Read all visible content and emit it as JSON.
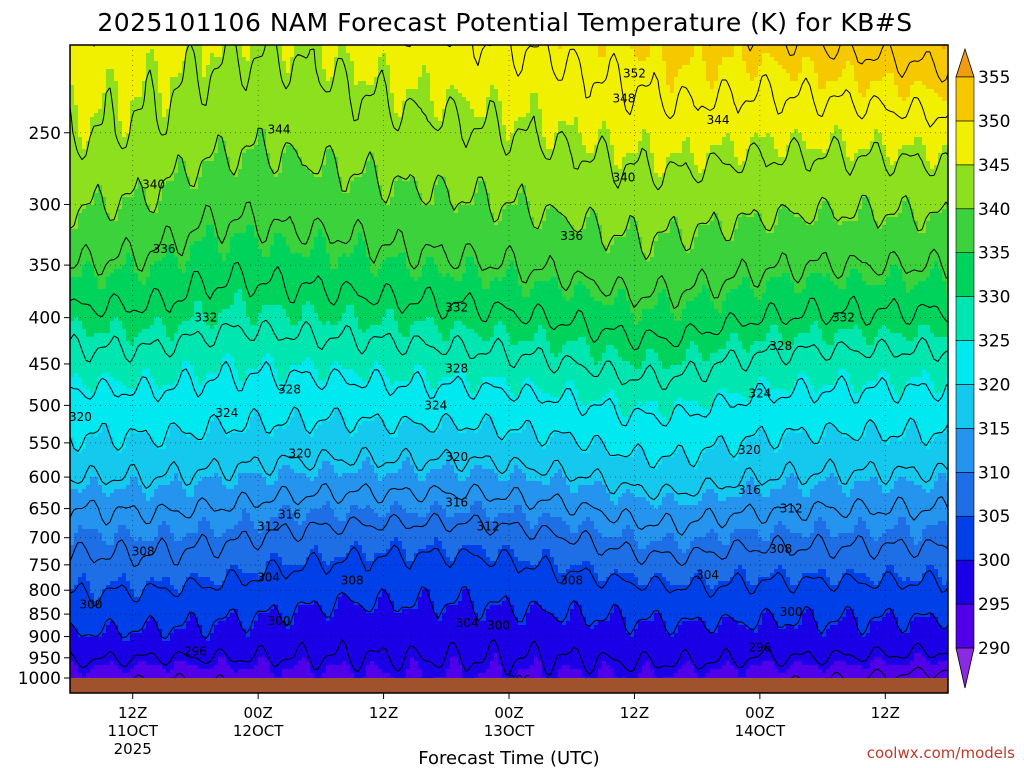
{
  "chart_data": {
    "type": "heatmap",
    "subtype": "filled-contour time-height cross-section",
    "title": "2025101106 NAM Forecast Potential Temperature (K) for KB#S",
    "xlabel": "Forecast Time (UTC)",
    "ylabel": "",
    "y_axis": {
      "units": "hPa",
      "scale": "log",
      "range": [
        1000,
        200
      ],
      "ticks": [
        250,
        300,
        350,
        400,
        450,
        500,
        550,
        600,
        650,
        700,
        750,
        800,
        850,
        900,
        950,
        1000
      ]
    },
    "x_axis": {
      "range_hours": [
        0,
        84
      ],
      "ticks": [
        {
          "h": 6,
          "line1": "12Z",
          "line2": "11OCT",
          "line3": "2025"
        },
        {
          "h": 18,
          "line1": "00Z",
          "line2": "12OCT",
          "line3": ""
        },
        {
          "h": 30,
          "line1": "12Z",
          "line2": "",
          "line3": ""
        },
        {
          "h": 42,
          "line1": "00Z",
          "line2": "13OCT",
          "line3": ""
        },
        {
          "h": 54,
          "line1": "12Z",
          "line2": "",
          "line3": ""
        },
        {
          "h": 66,
          "line1": "00Z",
          "line2": "14OCT",
          "line3": ""
        },
        {
          "h": 78,
          "line1": "12Z",
          "line2": "",
          "line3": ""
        }
      ]
    },
    "grid": true,
    "colorbar": {
      "placement": "right",
      "labels": [
        355,
        350,
        345,
        340,
        335,
        330,
        325,
        320,
        315,
        310,
        305,
        300,
        295,
        290
      ],
      "bins": [
        {
          "lo": 285,
          "hi": 290,
          "color": "#8a2be2"
        },
        {
          "lo": 290,
          "hi": 295,
          "color": "#5000e8"
        },
        {
          "lo": 295,
          "hi": 300,
          "color": "#1a00e6"
        },
        {
          "lo": 300,
          "hi": 305,
          "color": "#0040e8"
        },
        {
          "lo": 305,
          "hi": 310,
          "color": "#1e6ee6"
        },
        {
          "lo": 310,
          "hi": 315,
          "color": "#2494ee"
        },
        {
          "lo": 315,
          "hi": 320,
          "color": "#14c8ee"
        },
        {
          "lo": 320,
          "hi": 325,
          "color": "#00e8f0"
        },
        {
          "lo": 325,
          "hi": 330,
          "color": "#00e6b0"
        },
        {
          "lo": 330,
          "hi": 335,
          "color": "#00d35c"
        },
        {
          "lo": 335,
          "hi": 340,
          "color": "#3cd23c"
        },
        {
          "lo": 340,
          "hi": 345,
          "color": "#8ce01e"
        },
        {
          "lo": 345,
          "hi": 350,
          "color": "#f0f000"
        },
        {
          "lo": 350,
          "hi": 355,
          "color": "#f5c800"
        },
        {
          "lo": 355,
          "hi": 360,
          "color": "#f09b10"
        }
      ]
    },
    "ground_color": "#a0522d",
    "profile_pressures": [
      1000,
      950,
      900,
      850,
      800,
      750,
      700,
      650,
      600,
      550,
      500,
      450,
      400,
      350,
      300,
      250,
      200
    ],
    "profiles": [
      {
        "h": 0,
        "theta": [
          293,
          296.5,
          299.5,
          302,
          304.5,
          307,
          309.5,
          312,
          316,
          319.5,
          322.5,
          326.5,
          331,
          336,
          340.5,
          344.5,
          347
        ]
      },
      {
        "h": 8,
        "theta": [
          292.5,
          296,
          299,
          301.5,
          304,
          307,
          309.5,
          312.5,
          316,
          319.5,
          322.5,
          326.5,
          331,
          335,
          339.5,
          343.5,
          346
        ]
      },
      {
        "h": 12,
        "theta": [
          292.5,
          296,
          299,
          301,
          303.5,
          306.5,
          309,
          312,
          315.5,
          319,
          322,
          325.5,
          330,
          333.5,
          337.5,
          342,
          345
        ]
      },
      {
        "h": 16,
        "theta": [
          293,
          296,
          298.5,
          300.5,
          303,
          305.5,
          308.5,
          311.5,
          315,
          318.5,
          321.5,
          325,
          329,
          333,
          337,
          341,
          344.5
        ]
      },
      {
        "h": 20,
        "theta": [
          293.5,
          296,
          298,
          300,
          302,
          304.5,
          307.5,
          310.5,
          314.5,
          318,
          321.5,
          325,
          329.5,
          333.5,
          337.5,
          341,
          344.5
        ]
      },
      {
        "h": 26,
        "theta": [
          294,
          296,
          297.5,
          299,
          301,
          303.5,
          306.5,
          310,
          314,
          317.5,
          321.5,
          325.5,
          330,
          334,
          338,
          342,
          345.5
        ]
      },
      {
        "h": 32,
        "theta": [
          294.5,
          296,
          297.5,
          299,
          301,
          303,
          306,
          310,
          314,
          318,
          322,
          326,
          330.5,
          335,
          339,
          343,
          347
        ]
      },
      {
        "h": 38,
        "theta": [
          294.5,
          296,
          297.5,
          299,
          301,
          303,
          306,
          310,
          314,
          318,
          322,
          326.5,
          331,
          335.5,
          339.5,
          343.5,
          347.5
        ]
      },
      {
        "h": 42,
        "theta": [
          294.5,
          296,
          297.5,
          299.5,
          301.5,
          303.5,
          306.5,
          310.5,
          314.5,
          318.5,
          322.5,
          327,
          331.5,
          336,
          340,
          344,
          348
        ]
      },
      {
        "h": 48,
        "theta": [
          294.5,
          296,
          298,
          300,
          302,
          305,
          308,
          311.5,
          315.5,
          319.5,
          323.5,
          328,
          332.5,
          337,
          341,
          345,
          349
        ]
      },
      {
        "h": 54,
        "theta": [
          294.5,
          296.5,
          298.5,
          300.5,
          303,
          306.5,
          310,
          313.5,
          317.5,
          321.5,
          325,
          329.5,
          334,
          338.5,
          342,
          346,
          350
        ]
      },
      {
        "h": 58,
        "theta": [
          294,
          296.5,
          298.5,
          301,
          303.5,
          307,
          310.5,
          314,
          318,
          321.5,
          325,
          329.5,
          334,
          338,
          342,
          346.5,
          351
        ]
      },
      {
        "h": 62,
        "theta": [
          293.5,
          296.5,
          298.5,
          301,
          303.5,
          306.5,
          309.5,
          313,
          317,
          320.5,
          324,
          328,
          333,
          337.5,
          341.5,
          346,
          351
        ]
      },
      {
        "h": 66,
        "theta": [
          293,
          296,
          298.5,
          300.5,
          303,
          306,
          309,
          312.5,
          316,
          319.5,
          323,
          327,
          332,
          336.5,
          341,
          345.5,
          351
        ]
      },
      {
        "h": 72,
        "theta": [
          292.5,
          296,
          298.5,
          300.5,
          303,
          306,
          309,
          312,
          315.5,
          319,
          322.5,
          326.5,
          331.5,
          336,
          340.5,
          345.5,
          352
        ]
      },
      {
        "h": 78,
        "theta": [
          291.5,
          295.5,
          298.5,
          300.5,
          303,
          306,
          309,
          312,
          315.5,
          319,
          322.5,
          326.5,
          331.5,
          336,
          340.5,
          346,
          353
        ]
      },
      {
        "h": 84,
        "theta": [
          290.5,
          295,
          298,
          300.5,
          303,
          306,
          309,
          312,
          315.5,
          319,
          322.5,
          326.5,
          331.5,
          336,
          341,
          346.5,
          354
        ]
      }
    ],
    "contour_interval": 4,
    "contour_labels": [
      {
        "value": 352,
        "h": 54,
        "p": 215
      },
      {
        "value": 348,
        "h": 53,
        "p": 229
      },
      {
        "value": 344,
        "h": 20,
        "p": 248
      },
      {
        "value": 344,
        "h": 62,
        "p": 242
      },
      {
        "value": 340,
        "h": 8,
        "p": 285
      },
      {
        "value": 340,
        "h": 53,
        "p": 280
      },
      {
        "value": 336,
        "h": 9,
        "p": 336
      },
      {
        "value": 336,
        "h": 48,
        "p": 325
      },
      {
        "value": 332,
        "h": 13,
        "p": 400
      },
      {
        "value": 332,
        "h": 37,
        "p": 390
      },
      {
        "value": 332,
        "h": 74,
        "p": 400
      },
      {
        "value": 328,
        "h": 21,
        "p": 480
      },
      {
        "value": 328,
        "h": 37,
        "p": 455
      },
      {
        "value": 328,
        "h": 68,
        "p": 430
      },
      {
        "value": 324,
        "h": 15,
        "p": 510
      },
      {
        "value": 324,
        "h": 35,
        "p": 500
      },
      {
        "value": 324,
        "h": 66,
        "p": 485
      },
      {
        "value": 320,
        "h": 1,
        "p": 515
      },
      {
        "value": 320,
        "h": 22,
        "p": 565
      },
      {
        "value": 320,
        "h": 37,
        "p": 570
      },
      {
        "value": 320,
        "h": 65,
        "p": 560
      },
      {
        "value": 316,
        "h": 21,
        "p": 660
      },
      {
        "value": 316,
        "h": 37,
        "p": 640
      },
      {
        "value": 316,
        "h": 65,
        "p": 620
      },
      {
        "value": 312,
        "h": 19,
        "p": 680
      },
      {
        "value": 312,
        "h": 40,
        "p": 680
      },
      {
        "value": 312,
        "h": 69,
        "p": 650
      },
      {
        "value": 308,
        "h": 7,
        "p": 725
      },
      {
        "value": 308,
        "h": 27,
        "p": 780
      },
      {
        "value": 308,
        "h": 48,
        "p": 780
      },
      {
        "value": 308,
        "h": 68,
        "p": 720
      },
      {
        "value": 304,
        "h": 19,
        "p": 775
      },
      {
        "value": 304,
        "h": 38,
        "p": 870
      },
      {
        "value": 304,
        "h": 61,
        "p": 770
      },
      {
        "value": 300,
        "h": 2,
        "p": 830
      },
      {
        "value": 300,
        "h": 20,
        "p": 865
      },
      {
        "value": 300,
        "h": 41,
        "p": 875
      },
      {
        "value": 300,
        "h": 69,
        "p": 845
      },
      {
        "value": 296,
        "h": 12,
        "p": 935
      },
      {
        "value": 296,
        "h": 43,
        "p": 1005
      },
      {
        "value": 296,
        "h": 66,
        "p": 925
      }
    ]
  },
  "credit": "coolwx.com/models"
}
